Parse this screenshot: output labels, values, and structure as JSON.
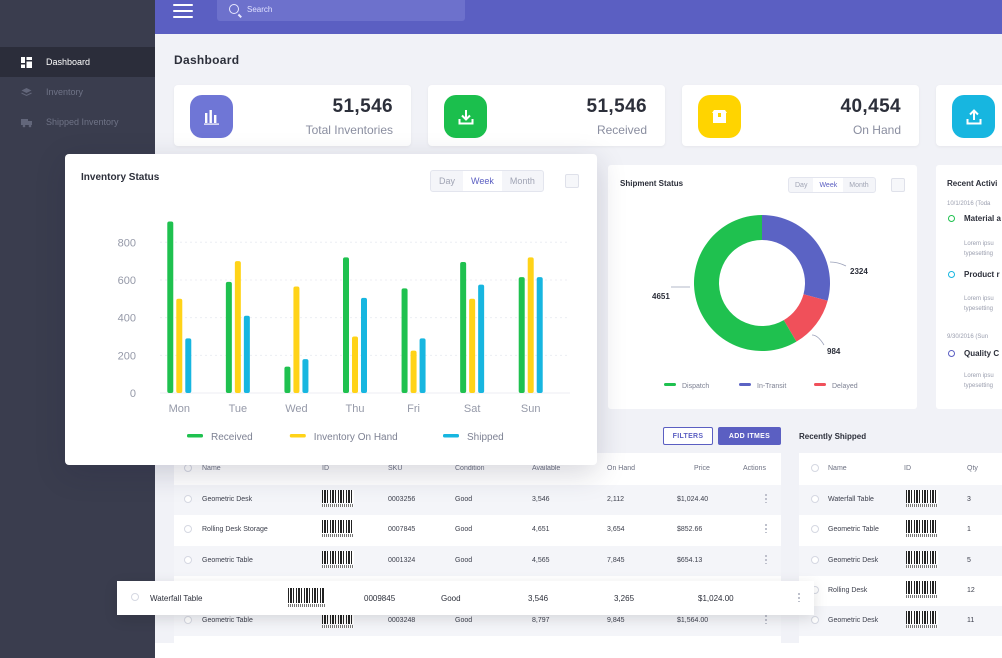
{
  "topbar": {
    "search_placeholder": "Search"
  },
  "sidebar": {
    "items": [
      {
        "label": "Dashboard",
        "active": true
      },
      {
        "label": "Inventory",
        "active": false
      },
      {
        "label": "Shipped Inventory",
        "active": false
      }
    ]
  },
  "page_title": "Dashboard",
  "stats": [
    {
      "value": "51,546",
      "label": "Total Inventories",
      "color": "#5b5fc2",
      "icon": "bar-chart-icon"
    },
    {
      "value": "51,546",
      "label": "Received",
      "color": "#1bbf4d",
      "icon": "download-icon"
    },
    {
      "value": "40,454",
      "label": "On Hand",
      "color": "#ffd600",
      "icon": "box-icon"
    },
    {
      "value": "",
      "label": "",
      "color": "#1ab3e6",
      "icon": "upload-icon"
    }
  ],
  "inventory_status": {
    "title": "Inventory Status",
    "tabs": [
      "Day",
      "Week",
      "Month"
    ],
    "active_tab": "Week"
  },
  "shipment_status": {
    "title": "Shipment Status",
    "tabs": [
      "Day",
      "Week",
      "Month"
    ],
    "active_tab": "Week"
  },
  "recent_activity": {
    "title": "Recent Activi",
    "date1": "10/1/2016 (Toda",
    "item1_title": "Material a",
    "item2_title": "Product r",
    "date2": "9/30/2016 (Sun",
    "item3_title": "Quality C",
    "lorem1": "Lorem ipsu",
    "lorem2": "typesetting"
  },
  "chart_data": [
    {
      "type": "bar",
      "categories": [
        "Mon",
        "Tue",
        "Wed",
        "Thu",
        "Fri",
        "Sat",
        "Sun"
      ],
      "series": [
        {
          "name": "Received",
          "values": [
            910,
            590,
            140,
            720,
            555,
            695,
            615
          ],
          "color": "#1fc14f"
        },
        {
          "name": "Inventory On Hand",
          "values": [
            500,
            700,
            565,
            300,
            225,
            500,
            720
          ],
          "color": "#ffd318"
        },
        {
          "name": "Shipped",
          "values": [
            290,
            410,
            180,
            505,
            290,
            575,
            615
          ],
          "color": "#17b6e0"
        }
      ],
      "yticks": [
        0,
        200,
        400,
        600,
        800
      ],
      "ylim": [
        0,
        950
      ],
      "grid": true,
      "legend": "bottom"
    },
    {
      "type": "pie",
      "donut": true,
      "slices": [
        {
          "name": "Dispatch",
          "value": 4651,
          "color": "#1fc14f"
        },
        {
          "name": "In-Transit",
          "value": 2324,
          "color": "#5b63c4"
        },
        {
          "name": "Delayed",
          "value": 984,
          "color": "#f0505a"
        }
      ],
      "legend": "bottom"
    }
  ],
  "inventory_table": {
    "filter_label": "FILTERS",
    "add_label": "ADD ITMES",
    "headers": [
      "Name",
      "ID",
      "SKU",
      "Condition",
      "Available",
      "On Hand",
      "Price",
      "Actions"
    ],
    "rows": [
      {
        "name": "Geometric Desk",
        "sku": "0003256",
        "condition": "Good",
        "available": "3,546",
        "onhand": "2,112",
        "price": "$1,024.40"
      },
      {
        "name": "Rolling Desk Storage",
        "sku": "0007845",
        "condition": "Good",
        "available": "4,651",
        "onhand": "3,654",
        "price": "$852.66"
      },
      {
        "name": "Geometric Table",
        "sku": "0001324",
        "condition": "Good",
        "available": "4,565",
        "onhand": "7,845",
        "price": "$654.13"
      },
      {
        "name": "Waterfall Table",
        "sku": "0009845",
        "condition": "Good",
        "available": "3,546",
        "onhand": "3,265",
        "price": "$1,024.00"
      },
      {
        "name": "Geometric Table",
        "sku": "0003248",
        "condition": "Good",
        "available": "8,797",
        "onhand": "9,845",
        "price": "$1,564.00"
      }
    ]
  },
  "recently_shipped": {
    "title": "Recently Shipped",
    "headers": [
      "Name",
      "ID",
      "Qty"
    ],
    "rows": [
      {
        "name": "Waterfall Table",
        "qty": "3"
      },
      {
        "name": "Geometric Table",
        "qty": "1"
      },
      {
        "name": "Geometric Desk",
        "qty": "5"
      },
      {
        "name": "Rolling Desk",
        "qty": "12"
      },
      {
        "name": "Geometric Desk",
        "qty": "11"
      }
    ]
  }
}
